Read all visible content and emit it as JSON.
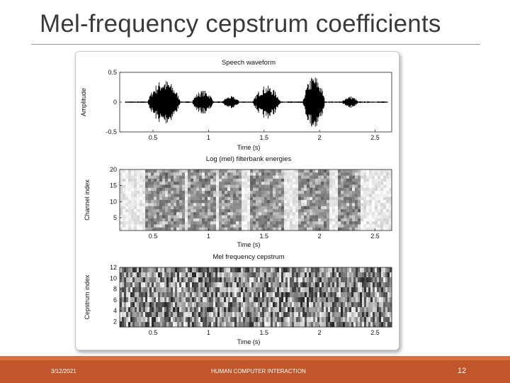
{
  "slide": {
    "title": "Mel-frequency cepstrum coefficients"
  },
  "footer": {
    "date": "3/12/2021",
    "center": "HUMAN COMPUTER INTERACTION",
    "page": "12"
  },
  "colors": {
    "footer_bar": "#c0562a",
    "title_text": "#3a3a3a"
  },
  "chart_data": [
    {
      "type": "line",
      "title": "Speech waveform",
      "xlabel": "Time (s)",
      "ylabel": "Amplitude",
      "xlim": [
        0.2,
        2.65
      ],
      "ylim": [
        -0.5,
        0.5
      ],
      "x_ticks": [
        "0.5",
        "1",
        "1.5",
        "2",
        "2.5"
      ],
      "y_ticks": [
        "0.5",
        "0",
        "-0.5"
      ],
      "grid": false,
      "speech_bursts": [
        {
          "start": 0.45,
          "end": 0.75,
          "peak": 0.38
        },
        {
          "start": 0.85,
          "end": 1.05,
          "peak": 0.2
        },
        {
          "start": 1.12,
          "end": 1.28,
          "peak": 0.1
        },
        {
          "start": 1.4,
          "end": 1.65,
          "peak": 0.28
        },
        {
          "start": 1.85,
          "end": 2.05,
          "peak": 0.45
        },
        {
          "start": 2.2,
          "end": 2.35,
          "peak": 0.1
        }
      ]
    },
    {
      "type": "heatmap",
      "title": "Log (mel) filterbank energies",
      "xlabel": "Time (s)",
      "ylabel": "Channel index",
      "xlim": [
        0.2,
        2.65
      ],
      "ylim": [
        1,
        20
      ],
      "x_ticks": [
        "0.5",
        "1",
        "1.5",
        "2",
        "2.5"
      ],
      "y_ticks": [
        "20",
        "15",
        "10",
        "5"
      ],
      "colormap": "gray"
    },
    {
      "type": "heatmap",
      "title": "Mel frequency cepstrum",
      "xlabel": "Time (s)",
      "ylabel": "Cepstrum index",
      "xlim": [
        0.2,
        2.65
      ],
      "ylim": [
        1,
        12
      ],
      "x_ticks": [
        "0.5",
        "1",
        "1.5",
        "2",
        "2.5"
      ],
      "y_ticks": [
        "12",
        "10",
        "8",
        "6",
        "4",
        "2"
      ],
      "colormap": "gray"
    }
  ]
}
